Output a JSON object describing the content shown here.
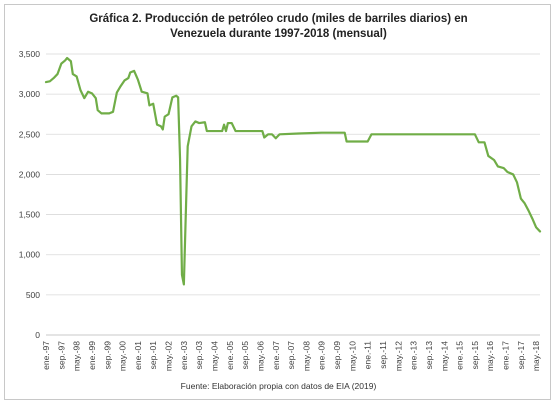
{
  "chart_data": {
    "type": "line",
    "title_lines": [
      "Gráfica 2. Producción de petróleo crudo (miles de barriles diarios) en",
      "Venezuela durante 1997-2018 (mensual)"
    ],
    "source": "Fuente: Elaboración propia con datos de EIA (2019)",
    "xlabel": "",
    "ylabel": "",
    "ylim": [
      0,
      3500
    ],
    "yticks": [
      0,
      500,
      1000,
      1500,
      2000,
      2500,
      3000,
      3500
    ],
    "ytick_labels": [
      "0",
      "500",
      "1,000",
      "1,500",
      "2,000",
      "2,500",
      "3,000",
      "3,500"
    ],
    "x_range_months": [
      "1997-01",
      "2018-07"
    ],
    "xtick_labels": [
      "ene.-97",
      "sep.-97",
      "may.-98",
      "ene.-99",
      "sep.-99",
      "may.-00",
      "ene.-01",
      "sep.-01",
      "may.-02",
      "ene.-03",
      "sep.-03",
      "may.-04",
      "ene.-05",
      "sep.-05",
      "may.-06",
      "ene.-07",
      "sep.-07",
      "may.-08",
      "ene.-09",
      "sep.-09",
      "may.-10",
      "ene.-11",
      "sep.-11",
      "may.-12",
      "ene.-13",
      "sep.-13",
      "may.-14",
      "ene.-15",
      "sep.-15",
      "may.-16",
      "ene.-17",
      "sep.-17",
      "may.-18"
    ],
    "grid": "horizontal",
    "legend": "none",
    "color": "#70ad47",
    "series": [
      {
        "points": [
          [
            "1997-01",
            3150
          ],
          [
            "1997-03",
            3160
          ],
          [
            "1997-05",
            3200
          ],
          [
            "1997-07",
            3250
          ],
          [
            "1997-09",
            3380
          ],
          [
            "1997-11",
            3420
          ],
          [
            "1997-12",
            3450
          ],
          [
            "1998-02",
            3410
          ],
          [
            "1998-03",
            3250
          ],
          [
            "1998-05",
            3220
          ],
          [
            "1998-07",
            3050
          ],
          [
            "1998-09",
            2950
          ],
          [
            "1998-11",
            3030
          ],
          [
            "1999-01",
            3010
          ],
          [
            "1999-03",
            2950
          ],
          [
            "1999-04",
            2800
          ],
          [
            "1999-06",
            2760
          ],
          [
            "1999-08",
            2760
          ],
          [
            "1999-10",
            2760
          ],
          [
            "1999-12",
            2780
          ],
          [
            "2000-02",
            3020
          ],
          [
            "2000-04",
            3100
          ],
          [
            "2000-06",
            3170
          ],
          [
            "2000-08",
            3200
          ],
          [
            "2000-09",
            3270
          ],
          [
            "2000-11",
            3290
          ],
          [
            "2001-01",
            3180
          ],
          [
            "2001-03",
            3030
          ],
          [
            "2001-06",
            3010
          ],
          [
            "2001-07",
            2860
          ],
          [
            "2001-09",
            2880
          ],
          [
            "2001-11",
            2620
          ],
          [
            "2002-01",
            2600
          ],
          [
            "2002-02",
            2560
          ],
          [
            "2002-03",
            2720
          ],
          [
            "2002-05",
            2750
          ],
          [
            "2002-07",
            2960
          ],
          [
            "2002-09",
            2980
          ],
          [
            "2002-10",
            2960
          ],
          [
            "2002-11",
            2200
          ],
          [
            "2002-12",
            750
          ],
          [
            "2003-01",
            630
          ],
          [
            "2003-02",
            1500
          ],
          [
            "2003-03",
            2350
          ],
          [
            "2003-05",
            2600
          ],
          [
            "2003-07",
            2660
          ],
          [
            "2003-09",
            2640
          ],
          [
            "2003-12",
            2650
          ],
          [
            "2004-01",
            2540
          ],
          [
            "2004-03",
            2540
          ],
          [
            "2004-06",
            2540
          ],
          [
            "2004-09",
            2540
          ],
          [
            "2004-10",
            2620
          ],
          [
            "2004-11",
            2540
          ],
          [
            "2004-12",
            2640
          ],
          [
            "2005-02",
            2640
          ],
          [
            "2005-04",
            2540
          ],
          [
            "2005-08",
            2540
          ],
          [
            "2006-06",
            2540
          ],
          [
            "2006-07",
            2460
          ],
          [
            "2006-09",
            2500
          ],
          [
            "2006-11",
            2500
          ],
          [
            "2007-01",
            2450
          ],
          [
            "2007-03",
            2500
          ],
          [
            "2008-01",
            2510
          ],
          [
            "2009-01",
            2520
          ],
          [
            "2010-01",
            2520
          ],
          [
            "2010-02",
            2410
          ],
          [
            "2011-01",
            2410
          ],
          [
            "2011-03",
            2500
          ],
          [
            "2015-09",
            2500
          ],
          [
            "2015-11",
            2400
          ],
          [
            "2016-02",
            2400
          ],
          [
            "2016-04",
            2230
          ],
          [
            "2016-07",
            2180
          ],
          [
            "2016-09",
            2100
          ],
          [
            "2016-12",
            2080
          ],
          [
            "2017-02",
            2030
          ],
          [
            "2017-05",
            2000
          ],
          [
            "2017-07",
            1900
          ],
          [
            "2017-09",
            1700
          ],
          [
            "2017-11",
            1640
          ],
          [
            "2018-01",
            1550
          ],
          [
            "2018-03",
            1450
          ],
          [
            "2018-05",
            1340
          ],
          [
            "2018-07",
            1290
          ]
        ]
      }
    ]
  }
}
